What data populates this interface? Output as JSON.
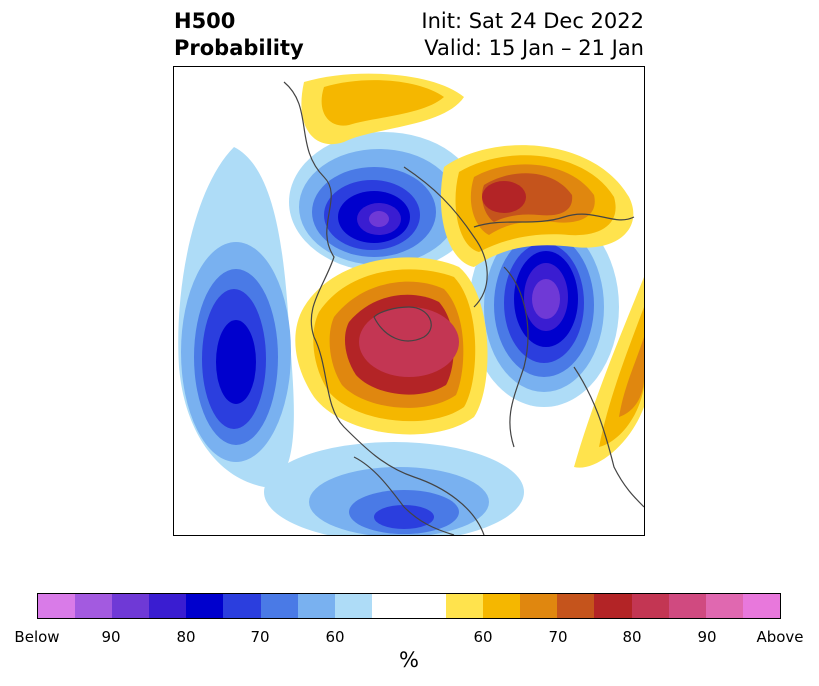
{
  "title": {
    "left_line1": "H500",
    "left_line2": "Probability",
    "right_line1": "Init: Sat 24 Dec 2022",
    "right_line2": "Valid: 15 Jan – 21 Jan"
  },
  "colorbar": {
    "colors": [
      "#d97be8",
      "#a35ae0",
      "#6f39d6",
      "#3a1dd1",
      "#0000cd",
      "#2b3ede",
      "#4a7ae6",
      "#79b1f0",
      "#aedcf7",
      "#ffffff",
      "#ffffff",
      "#ffe34d",
      "#f5b700",
      "#e0870f",
      "#c5541c",
      "#b32426",
      "#c33653",
      "#d04a80",
      "#e068b0",
      "#e878dc"
    ],
    "tick_labels": [
      "Below",
      "90",
      "80",
      "70",
      "60",
      "60",
      "70",
      "80",
      "90",
      "Above"
    ],
    "unit": "%"
  }
}
